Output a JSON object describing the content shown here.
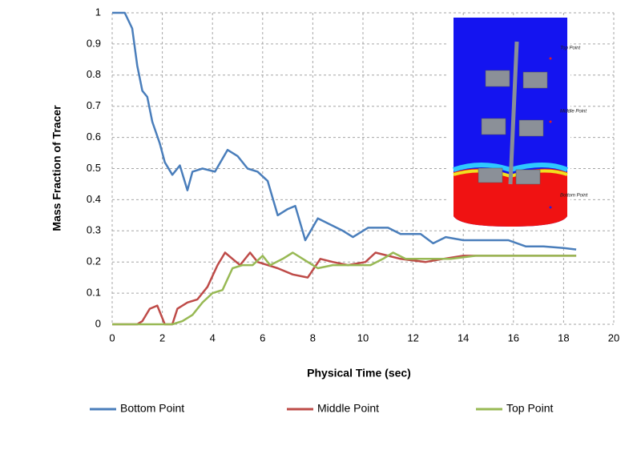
{
  "chart_data": {
    "type": "line",
    "y_label": "Mass Fraction of Tracer",
    "x_label": "Physical Time (sec)",
    "xlim": [
      0,
      20
    ],
    "xticks": [
      0,
      2,
      4,
      6,
      8,
      10,
      12,
      14,
      16,
      18,
      20
    ],
    "ylim": [
      0,
      1
    ],
    "yticks": [
      0,
      0.1,
      0.2,
      0.3,
      0.4,
      0.5,
      0.6,
      0.7,
      0.8,
      0.9,
      1
    ],
    "grid": true,
    "legend": "bottom",
    "annotations": [
      "Top Point",
      "Middle Point",
      "Bottom Point"
    ],
    "series": [
      {
        "name": "Bottom Point",
        "color": "#4a7ebb",
        "x": [
          0,
          0.5,
          0.8,
          1.0,
          1.2,
          1.4,
          1.6,
          1.9,
          2.1,
          2.4,
          2.7,
          3.0,
          3.2,
          3.6,
          4.1,
          4.6,
          5.0,
          5.4,
          5.8,
          6.2,
          6.6,
          7.0,
          7.3,
          7.7,
          8.2,
          8.7,
          9.2,
          9.6,
          10.2,
          11.0,
          11.5,
          12.3,
          12.8,
          13.3,
          14.0,
          15.0,
          15.8,
          16.5,
          17.2,
          18.0,
          18.5
        ],
        "values": [
          1,
          1,
          0.95,
          0.83,
          0.75,
          0.73,
          0.65,
          0.58,
          0.52,
          0.48,
          0.51,
          0.43,
          0.49,
          0.5,
          0.49,
          0.56,
          0.54,
          0.5,
          0.49,
          0.46,
          0.35,
          0.37,
          0.38,
          0.27,
          0.34,
          0.32,
          0.3,
          0.28,
          0.31,
          0.31,
          0.29,
          0.29,
          0.26,
          0.28,
          0.27,
          0.27,
          0.27,
          0.25,
          0.25,
          0.245,
          0.24
        ]
      },
      {
        "name": "Middle Point",
        "color": "#be4b48",
        "x": [
          0,
          1.0,
          1.2,
          1.5,
          1.8,
          2.1,
          2.4,
          2.6,
          3.0,
          3.4,
          3.8,
          4.2,
          4.5,
          4.8,
          5.1,
          5.5,
          5.8,
          6.2,
          6.6,
          7.2,
          7.8,
          8.3,
          8.8,
          9.4,
          10.1,
          10.5,
          11.0,
          11.5,
          12.5,
          13.2,
          14,
          15,
          16,
          17,
          18.5
        ],
        "values": [
          0,
          0,
          0.01,
          0.05,
          0.06,
          0,
          0,
          0.05,
          0.07,
          0.08,
          0.12,
          0.19,
          0.23,
          0.21,
          0.19,
          0.23,
          0.2,
          0.19,
          0.18,
          0.16,
          0.15,
          0.21,
          0.2,
          0.19,
          0.2,
          0.23,
          0.22,
          0.21,
          0.2,
          0.21,
          0.22,
          0.22,
          0.22,
          0.22,
          0.22
        ]
      },
      {
        "name": "Top Point",
        "color": "#98b954",
        "x": [
          0,
          2.4,
          2.8,
          3.2,
          3.6,
          4.0,
          4.4,
          4.8,
          5.2,
          5.6,
          6.0,
          6.3,
          6.8,
          7.2,
          7.6,
          8.2,
          8.8,
          9.5,
          10.3,
          10.8,
          11.2,
          11.7,
          12.5,
          13.5,
          14.5,
          15.5,
          16.5,
          17.5,
          18.5
        ],
        "values": [
          0,
          0,
          0.01,
          0.03,
          0.07,
          0.1,
          0.11,
          0.18,
          0.19,
          0.19,
          0.22,
          0.19,
          0.21,
          0.23,
          0.21,
          0.18,
          0.19,
          0.19,
          0.19,
          0.21,
          0.23,
          0.21,
          0.21,
          0.21,
          0.22,
          0.22,
          0.22,
          0.22,
          0.22
        ]
      }
    ]
  }
}
